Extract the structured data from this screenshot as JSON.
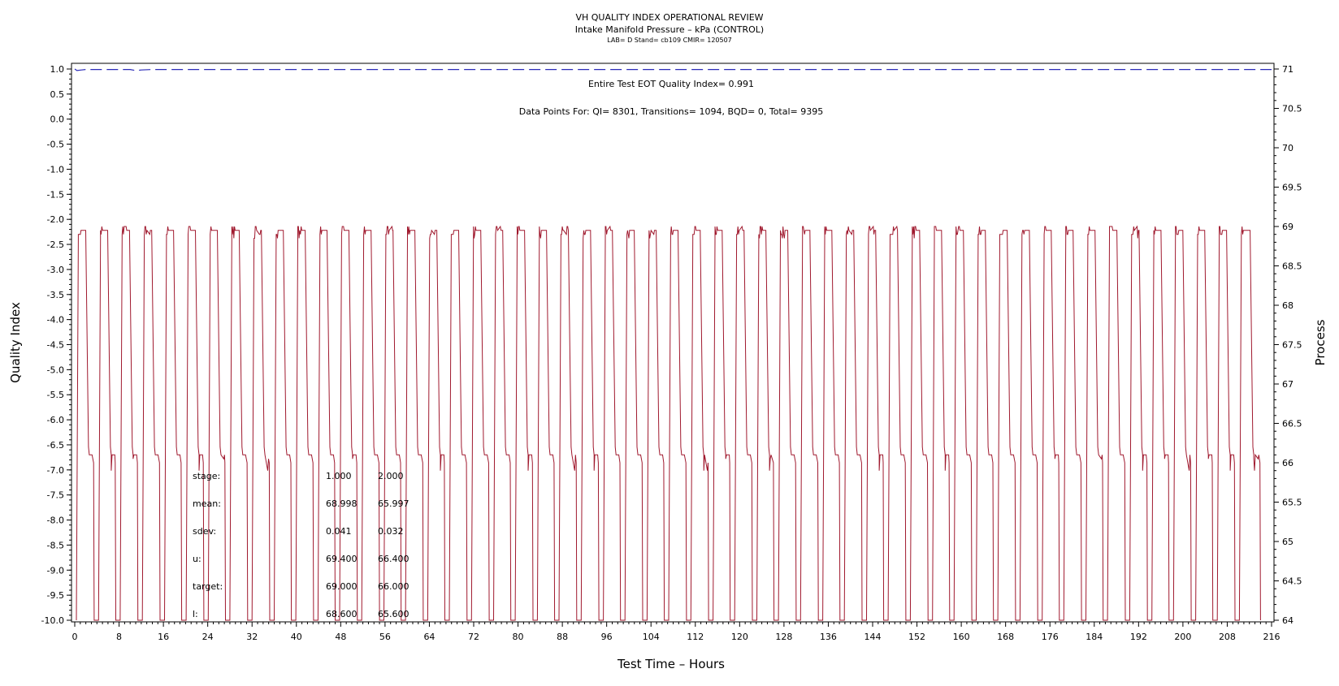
{
  "colors": {
    "process_trace": "#a0192e",
    "quality_index": "#2b2bb8",
    "axis": "#000000"
  },
  "chart_data": {
    "type": "line",
    "title": "VH QUALITY INDEX OPERATIONAL REVIEW",
    "subtitle": "Intake Manifold Pressure – kPa (CONTROL)",
    "info_line": "LAB= D Stand= cb109 CMIR= 120507",
    "xlabel": "Test Time – Hours",
    "ylabel_left": "Quality Index",
    "ylabel_right": "Process",
    "xlim": [
      0,
      216
    ],
    "ylim_left": [
      -10,
      1
    ],
    "ylim_right": [
      64,
      71
    ],
    "x_ticks": [
      "0",
      "8",
      "16",
      "24",
      "32",
      "40",
      "48",
      "56",
      "64",
      "72",
      "80",
      "88",
      "96",
      "104",
      "112",
      "120",
      "128",
      "136",
      "144",
      "152",
      "160",
      "168",
      "176",
      "184",
      "192",
      "200",
      "208",
      "216"
    ],
    "y_left_ticks": [
      "1.0",
      "0.5",
      "0.0",
      "-0.5",
      "-1.0",
      "-1.5",
      "-2.0",
      "-2.5",
      "-3.0",
      "-3.5",
      "-4.0",
      "-4.5",
      "-5.0",
      "-5.5",
      "-6.0",
      "-6.5",
      "-7.0",
      "-7.5",
      "-8.0",
      "-8.5",
      "-9.0",
      "-9.5",
      "-10.0"
    ],
    "y_right_ticks": [
      "71",
      "70.5",
      "70",
      "69.5",
      "69",
      "68.5",
      "68",
      "67.5",
      "67",
      "66.5",
      "66",
      "65.5",
      "65",
      "64.5",
      "64"
    ],
    "quality_index_text": "Entire Test EOT Quality Index=   0.991",
    "data_points_text": "Data Points For: QI=  8301, Transitions=  1094, BQD=     0, Total=  9395",
    "series": [
      {
        "axis": "left",
        "style": "dashed",
        "points": [
          [
            0,
            1.0
          ],
          [
            0.4,
            0.97
          ],
          [
            1.2,
            0.98
          ],
          [
            2,
            0.99
          ],
          [
            10,
            0.99
          ],
          [
            11,
            0.97
          ],
          [
            12,
            0.98
          ],
          [
            14,
            0.99
          ],
          [
            216,
            0.99
          ]
        ]
      },
      {
        "axis": "right",
        "style": "solid",
        "description_free": true,
        "stage1_level": 69.0,
        "stage2_level": 66.0,
        "cycle_starts": [
          0.3,
          4.3,
          8.2,
          12.2,
          16.2,
          20.1,
          24.1,
          28.0,
          32.0,
          36.0,
          39.9,
          43.9,
          47.8,
          51.8,
          55.8,
          59.7,
          63.7,
          67.6,
          71.6,
          75.6,
          79.5,
          83.5,
          87.4,
          91.4,
          95.4,
          99.3,
          103.3,
          107.2,
          111.2,
          115.2,
          119.1,
          123.1,
          127.0,
          131.0,
          135.0,
          138.9,
          142.9,
          146.8,
          150.8,
          154.8,
          158.7,
          162.7,
          166.6,
          170.6,
          174.6,
          178.5,
          182.5,
          186.4,
          190.4,
          194.4,
          198.3,
          202.3,
          206.2,
          210.2
        ]
      }
    ],
    "stats_table": {
      "rows": [
        {
          "label": "stage:",
          "s1": "1.000",
          "s2": "2.000"
        },
        {
          "label": "mean:",
          "s1": "68.998",
          "s2": "65.997"
        },
        {
          "label": "sdev:",
          "s1": "0.041",
          "s2": "0.032"
        },
        {
          "label": "u:",
          "s1": "69.400",
          "s2": "66.400"
        },
        {
          "label": "target:",
          "s1": "69.000",
          "s2": "66.000"
        },
        {
          "label": "l:",
          "s1": "68.600",
          "s2": "65.600"
        }
      ]
    }
  }
}
